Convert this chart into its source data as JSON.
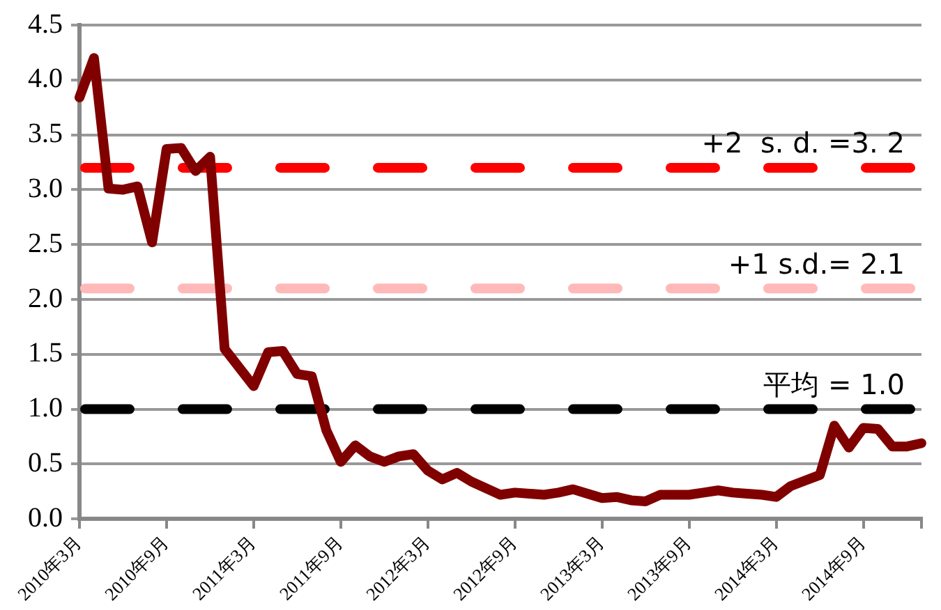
{
  "chart_data": {
    "type": "line",
    "categories": [
      "2010年3月",
      null,
      null,
      null,
      null,
      null,
      "2010年9月",
      null,
      null,
      null,
      null,
      null,
      "2011年3月",
      null,
      null,
      null,
      null,
      null,
      "2011年9月",
      null,
      null,
      null,
      null,
      null,
      "2012年3月",
      null,
      null,
      null,
      null,
      null,
      "2012年9月",
      null,
      null,
      null,
      null,
      null,
      "2013年3月",
      null,
      null,
      null,
      null,
      null,
      "2013年9月",
      null,
      null,
      null,
      null,
      null,
      "2014年3月",
      null,
      null,
      null,
      null,
      null,
      "2014年9月",
      null,
      null,
      null,
      null
    ],
    "series": [
      {
        "color": "#800000",
        "values": [
          3.84,
          4.2,
          3.01,
          3.0,
          3.03,
          2.52,
          3.37,
          3.38,
          3.17,
          3.3,
          1.55,
          1.38,
          1.21,
          1.52,
          1.53,
          1.32,
          1.3,
          0.81,
          0.52,
          0.67,
          0.57,
          0.52,
          0.57,
          0.59,
          0.44,
          0.36,
          0.42,
          0.34,
          0.28,
          0.22,
          0.24,
          0.23,
          0.22,
          0.24,
          0.27,
          0.23,
          0.19,
          0.2,
          0.17,
          0.16,
          0.22,
          0.22,
          0.22,
          0.24,
          0.26,
          0.24,
          0.23,
          0.22,
          0.2,
          0.3,
          0.35,
          0.4,
          0.85,
          0.65,
          0.83,
          0.82,
          0.66,
          0.66,
          0.69
        ]
      }
    ],
    "ylim": [
      0,
      4.5
    ],
    "yticks": [
      {
        "value": 0,
        "label": "0.0"
      },
      {
        "value": 0.5,
        "label": "0.5"
      },
      {
        "value": 1,
        "label": "1.0"
      },
      {
        "value": 1.5,
        "label": "1.5"
      },
      {
        "value": 2,
        "label": "2.0"
      },
      {
        "value": 2.5,
        "label": "2.5"
      },
      {
        "value": 3,
        "label": "3.0"
      },
      {
        "value": 3.5,
        "label": "3.5"
      },
      {
        "value": 4,
        "label": "4.0"
      },
      {
        "value": 4.5,
        "label": "4.5"
      }
    ],
    "grid": "y",
    "legend": false,
    "marker": "none",
    "line_style": "solid",
    "ref_lines": [
      {
        "axis": "y",
        "value": 3.2,
        "label": "+2  s. d. =3. 2",
        "color": "#ff0000",
        "line_style": "dashed"
      },
      {
        "axis": "y",
        "value": 2.1,
        "label": "+1 s.d.= 2.1",
        "color": "#ffb9b9",
        "line_style": "dashed"
      },
      {
        "axis": "y",
        "value": 1.0,
        "label": "平均 = 1.0",
        "color": "#000000",
        "line_style": "dashed"
      }
    ]
  }
}
